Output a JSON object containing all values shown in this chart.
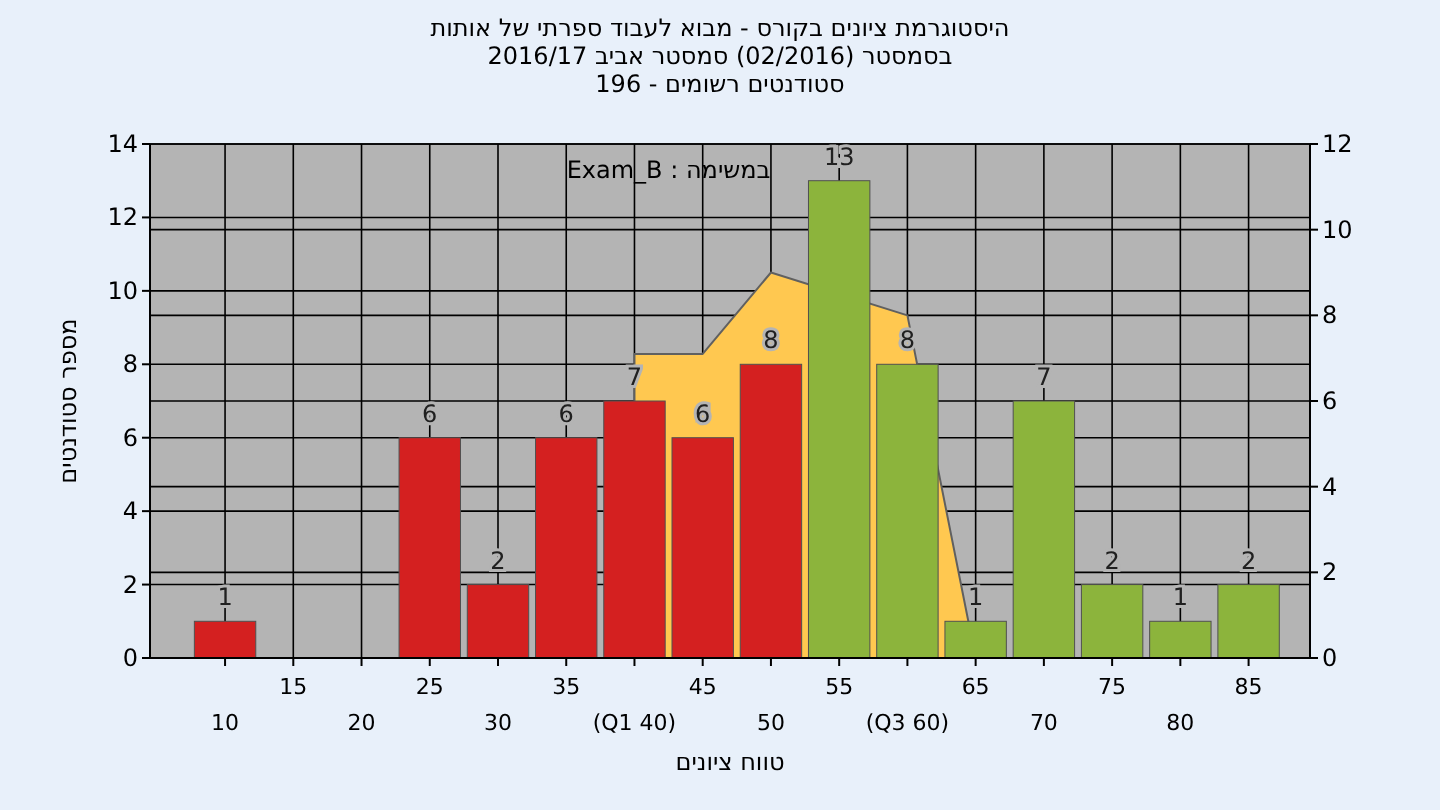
{
  "chart_data": {
    "type": "bar",
    "title": "היסטוגרמת ציונים בקורס - מבוא לעבוד ספרתי של אותות",
    "subtitle": "בסמסטר (02/2016) סמסטר אביב 2016/17",
    "annotations": [
      "סטודנטים רשומים - 196",
      "במשימה : Exam_B"
    ],
    "xlabel": "טווח ציונים",
    "ylabel": "מספר סטודנטים",
    "categories": [
      "10",
      "15",
      "20",
      "25",
      "30",
      "35",
      "(Q1 40)",
      "45",
      "50",
      "55",
      "(Q3 60)",
      "65",
      "70",
      "75",
      "80",
      "85"
    ],
    "series": [
      {
        "colors": [
          "#d42020",
          null,
          null,
          "#d42020",
          "#d42020",
          "#d42020",
          "#d42020",
          "#d42020",
          "#d42020",
          "#8cb43c",
          "#8cb43c",
          "#8cb43c",
          "#8cb43c",
          "#8cb43c",
          "#8cb43c",
          "#8cb43c"
        ],
        "values": [
          1,
          null,
          null,
          6,
          2,
          6,
          7,
          6,
          8,
          13,
          8,
          1,
          7,
          2,
          1,
          2
        ],
        "value_labels": [
          "1",
          null,
          null,
          "6",
          "2",
          "6",
          "7",
          "6",
          "8",
          "13",
          "8",
          "1",
          "7",
          "2",
          "1",
          "2"
        ]
      },
      {
        "type": "area",
        "axis": "y2",
        "color": "#ffc850",
        "values": [
          null,
          null,
          null,
          null,
          null,
          null,
          7.1,
          7.1,
          9.0,
          null,
          8.0,
          0,
          null,
          null,
          null,
          null
        ]
      }
    ],
    "ylim": [
      0,
      14
    ],
    "yticks": [
      0,
      2,
      4,
      6,
      8,
      10,
      12,
      14
    ],
    "y2lim": [
      0,
      12
    ],
    "y2ticks": [
      0,
      2,
      4,
      6,
      8,
      10,
      12
    ],
    "grid": true
  }
}
